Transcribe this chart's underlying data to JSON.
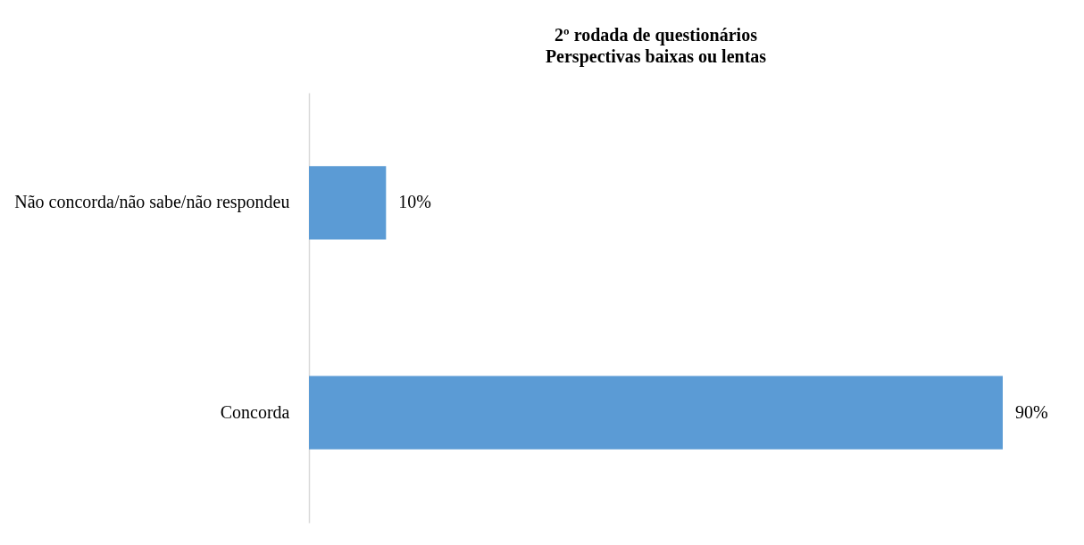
{
  "chart_data": {
    "type": "bar",
    "orientation": "horizontal",
    "title": "2º rodada de questionários\nPerspectivas baixas ou lentas",
    "categories": [
      "Não concorda/não sabe/não respondeu",
      "Concorda"
    ],
    "values": [
      10,
      90
    ],
    "value_labels": [
      "10%",
      "90%"
    ],
    "color": "#5b9bd5"
  }
}
